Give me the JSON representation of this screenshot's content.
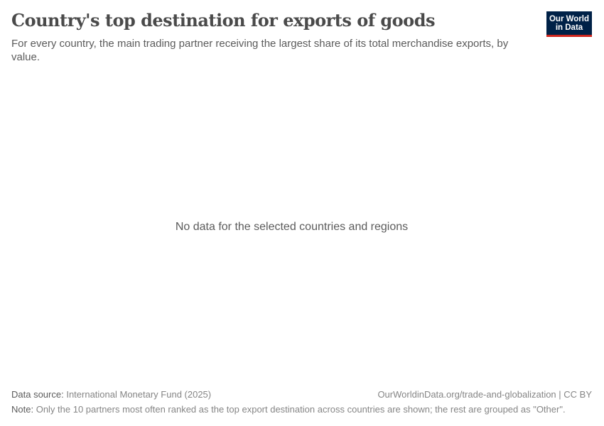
{
  "header": {
    "title": "Country's top destination for exports of goods",
    "subtitle": "For every country, the main trading partner receiving the largest share of its total merchandise exports, by value.",
    "logo": {
      "line1": "Our World",
      "line2": "in Data",
      "bg_color": "#002147",
      "accent_color": "#ce261e"
    }
  },
  "chart_data": {
    "type": "map",
    "title": "Country's top destination for exports of goods",
    "message": "No data for the selected countries and regions",
    "values": []
  },
  "footer": {
    "source_label": "Data source:",
    "source": "International Monetary Fund (2025)",
    "url": "OurWorldinData.org/trade-and-globalization | CC BY",
    "note_label": "Note:",
    "note": "Only the 10 partners most often ranked as the top export destination across countries are shown; the rest are grouped as \"Other\"."
  }
}
